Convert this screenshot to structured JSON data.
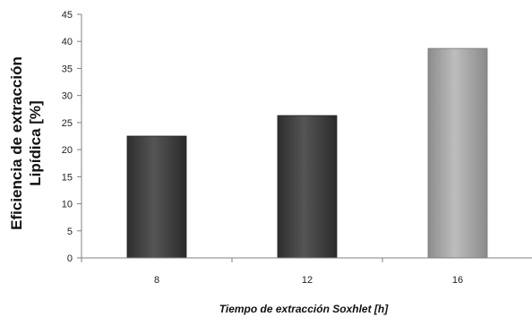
{
  "chart_data": {
    "type": "bar",
    "categories": [
      "8",
      "12",
      "16"
    ],
    "values": [
      22.5,
      26.3,
      38.7
    ],
    "bar_colors": [
      "#4a4a4a",
      "#4a4a4a",
      "#a8a8a8"
    ],
    "xlabel": "Tiempo de extracción Soxhlet [h]",
    "ylabel_line1": "Eficiencia de extracción",
    "ylabel_line2": "Lipídica [%]",
    "ylim": [
      0,
      45
    ],
    "yticks": [
      0,
      5,
      10,
      15,
      20,
      25,
      30,
      35,
      40,
      45
    ],
    "grid": false,
    "legend": "none"
  }
}
